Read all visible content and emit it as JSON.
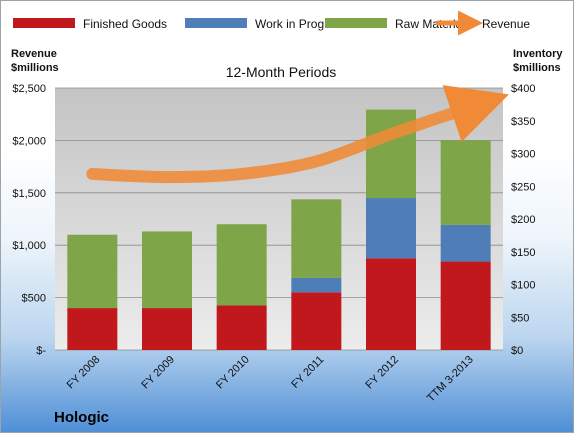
{
  "chart_data": {
    "type": "bar",
    "stacked": true,
    "subtitle": "12-Month Periods",
    "categories": [
      "FY 2008",
      "FY 2009",
      "FY 2010",
      "FY 2011",
      "FY 2012",
      "TTM 3-2013"
    ],
    "series": [
      {
        "name": "Finished Goods",
        "axis": "right",
        "color": "#c0181c",
        "values": [
          64,
          64,
          68,
          88,
          140,
          135
        ]
      },
      {
        "name": "Work in Progress",
        "axis": "right",
        "color": "#4f7db8",
        "values": [
          0,
          0,
          0,
          22,
          92,
          56
        ]
      },
      {
        "name": "Raw Materials",
        "axis": "right",
        "color": "#7ea547",
        "values": [
          112,
          117,
          124,
          120,
          135,
          129
        ]
      }
    ],
    "line_series": {
      "name": "Revenue",
      "axis": "left",
      "color": "#f08a36",
      "values": [
        1680,
        1650,
        1680,
        1800,
        2060,
        2300
      ]
    },
    "left_axis": {
      "label": "Revenue\n$millions",
      "ylim": [
        0,
        2500
      ],
      "ticks": [
        0,
        500,
        1000,
        1500,
        2000,
        2500
      ],
      "tick_labels": [
        "$-",
        "$500",
        "$1,000",
        "$1,500",
        "$2,000",
        "$2,500"
      ]
    },
    "right_axis": {
      "label": "Inventory\n$millions",
      "ylim": [
        0,
        400
      ],
      "ticks": [
        0,
        50,
        100,
        150,
        200,
        250,
        300,
        350,
        400
      ],
      "tick_labels": [
        "$0",
        "$50",
        "$100",
        "$150",
        "$200",
        "$250",
        "$300",
        "$350",
        "$400"
      ]
    },
    "grid": true,
    "legend_position": "top"
  },
  "brand": "Hologic"
}
